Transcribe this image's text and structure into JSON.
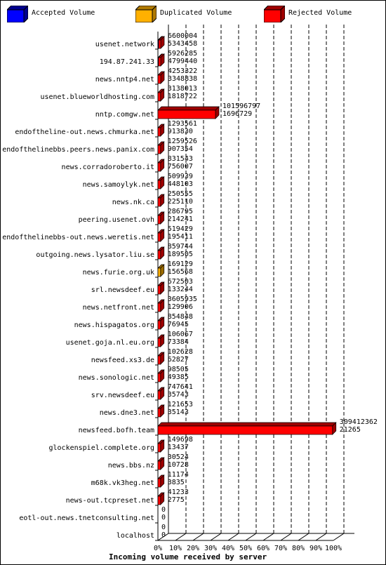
{
  "legend": [
    {
      "label": "Accepted Volume",
      "color": "#0000ff",
      "icon": "blue-cube-icon"
    },
    {
      "label": "Duplicated Volume",
      "color": "#ffb000",
      "icon": "orange-cube-icon"
    },
    {
      "label": "Rejected Volume",
      "color": "#ff0000",
      "icon": "red-cube-icon"
    }
  ],
  "chart_data": {
    "type": "bar",
    "orientation": "horizontal",
    "stacked": true,
    "title": "Incoming volume received by server",
    "xlim": [
      0,
      100
    ],
    "x_ticks": [
      "0%",
      "10%",
      "20%",
      "30%",
      "40%",
      "50%",
      "60%",
      "70%",
      "80%",
      "90%",
      "100%"
    ],
    "grid": "vertical-dashed",
    "legend_position": "top",
    "categories": [
      "usenet.network",
      "194.87.241.33",
      "news.nntp4.net",
      "usenet.blueworldhosting.com",
      "nntp.comgw.net",
      "endoftheline-out.news.chmurka.net",
      "endofthelinebbs.peers.news.panix.com",
      "news.corradoroberto.it",
      "news.samoylyk.net",
      "news.nk.ca",
      "peering.usenet.ovh",
      "endofthelinebbs-out.news.weretis.net",
      "outgoing.news.lysator.liu.se",
      "news.furie.org.uk",
      "srl.newsdeef.eu",
      "news.netfront.net",
      "news.hispagatos.org",
      "usenet.goja.nl.eu.org",
      "newsfeed.xs3.de",
      "news.sonologic.net",
      "srv.newsdeef.eu",
      "news.dne3.net",
      "newsfeed.bofh.team",
      "glockenspiel.complete.org",
      "news.bbs.nz",
      "m68k.vk3heg.net",
      "news-out.tcpreset.net",
      "eotl-out.news.tnetconsulting.net",
      "localhost"
    ],
    "volume_labels": [
      [
        "6600004",
        "5343458"
      ],
      [
        "5926285",
        "4799440"
      ],
      [
        "4253322",
        "3348838"
      ],
      [
        "3138013",
        "1818722"
      ],
      [
        "101596797",
        "1696729"
      ],
      [
        "1293561",
        "913830"
      ],
      [
        "1259526",
        "907354"
      ],
      [
        "831543",
        "756007"
      ],
      [
        "509939",
        "448103"
      ],
      [
        "250555",
        "225110"
      ],
      [
        "286795",
        "214241"
      ],
      [
        "519429",
        "195411"
      ],
      [
        "859744",
        "189505"
      ],
      [
        "169129",
        "156568"
      ],
      [
        "672503",
        "133244"
      ],
      [
        "3605935",
        "129906"
      ],
      [
        "854848",
        "76945"
      ],
      [
        "106067",
        "73384"
      ],
      [
        "102628",
        "62827"
      ],
      [
        "98505",
        "49385"
      ],
      [
        "747641",
        "35743"
      ],
      [
        "121653",
        "35143"
      ],
      [
        "309412362",
        "21265"
      ],
      [
        "149698",
        "13437"
      ],
      [
        "30524",
        "10728"
      ],
      [
        "11174",
        "3835"
      ],
      [
        "41233",
        "2775"
      ],
      [
        "0",
        "0"
      ],
      [
        "0",
        "0"
      ]
    ],
    "series": [
      {
        "name": "Accepted Volume",
        "color": "#0000ff",
        "values": [
          0.4,
          0.3,
          0,
          0,
          0,
          0,
          0,
          0,
          0,
          0,
          0,
          0,
          0,
          0,
          0,
          0,
          0,
          0,
          0,
          0,
          0,
          0,
          0,
          0,
          0,
          0,
          0,
          0,
          0
        ]
      },
      {
        "name": "Duplicated Volume",
        "color": "#ffb000",
        "values": [
          0,
          0,
          0,
          0,
          0,
          0,
          0,
          0,
          0,
          0,
          0,
          0,
          0,
          1.5,
          0,
          0,
          0,
          0,
          0,
          0,
          0,
          0,
          0,
          0,
          0,
          0,
          0,
          0,
          0
        ]
      },
      {
        "name": "Rejected Volume",
        "color": "#ff0000",
        "values": [
          1.2,
          1.3,
          1.6,
          1.5,
          32.8,
          1.5,
          1.5,
          1.5,
          1.5,
          1.5,
          1.5,
          1.5,
          1.5,
          0,
          1.5,
          1.5,
          1.5,
          1.5,
          1.5,
          1.5,
          1.5,
          1.5,
          99.5,
          1.5,
          1.5,
          1.5,
          1.5,
          0,
          0
        ]
      }
    ]
  }
}
